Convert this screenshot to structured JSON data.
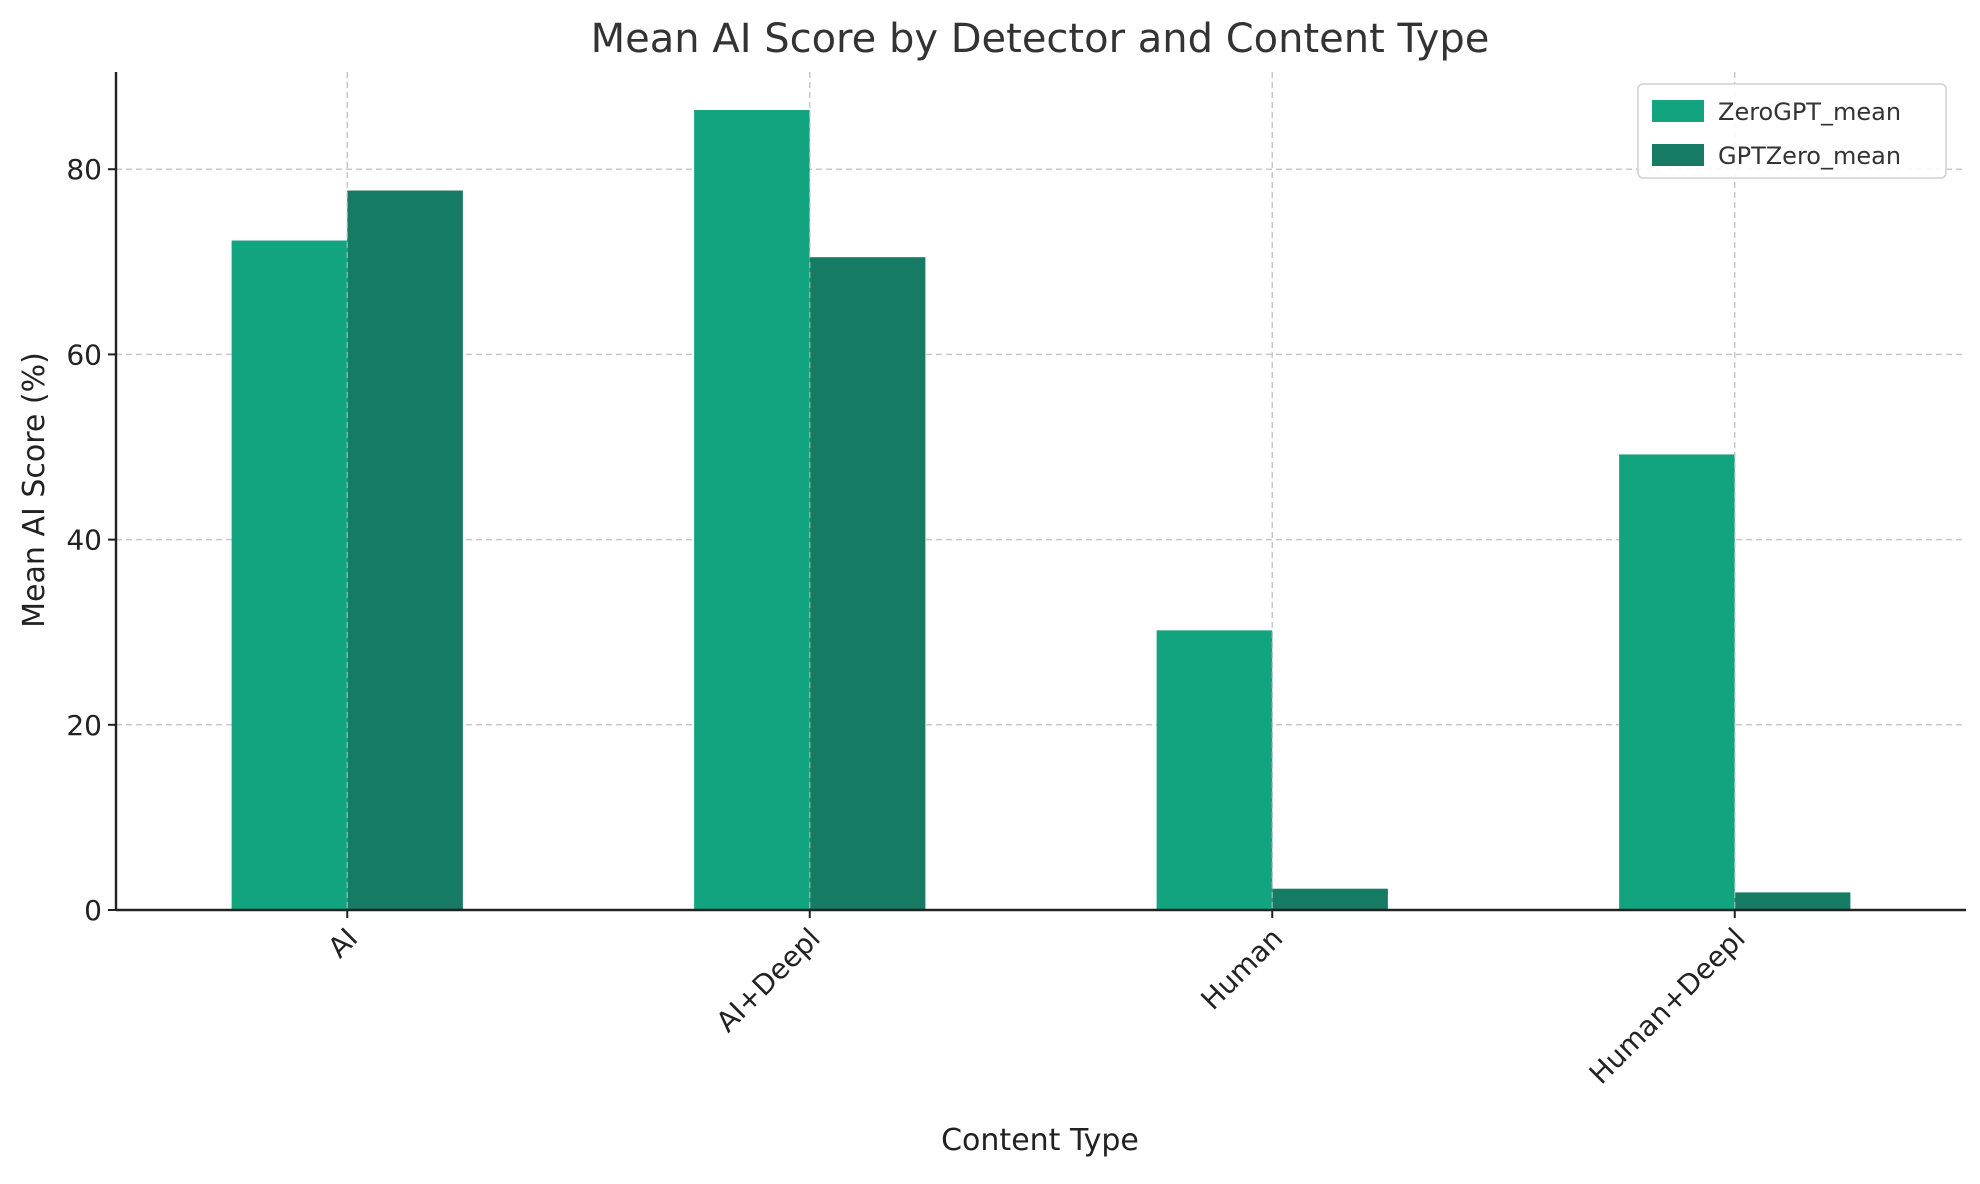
{
  "chart_data": {
    "type": "bar",
    "title": "Mean AI Score by Detector and Content Type",
    "xlabel": "Content Type",
    "ylabel": "Mean AI Score (%)",
    "categories": [
      "AI",
      "AI+Deepl",
      "Human",
      "Human+Deepl"
    ],
    "series": [
      {
        "name": "ZeroGPT_mean",
        "color": "#12a37f",
        "values": [
          72.3,
          86.4,
          30.2,
          49.2
        ]
      },
      {
        "name": "GPTZero_mean",
        "color": "#157b62",
        "values": [
          77.7,
          70.5,
          2.3,
          1.9
        ]
      }
    ],
    "ylim": [
      0,
      90.5
    ],
    "yticks": [
      0,
      20,
      40,
      60,
      80
    ],
    "grid": true,
    "legend_position": "top-right"
  }
}
